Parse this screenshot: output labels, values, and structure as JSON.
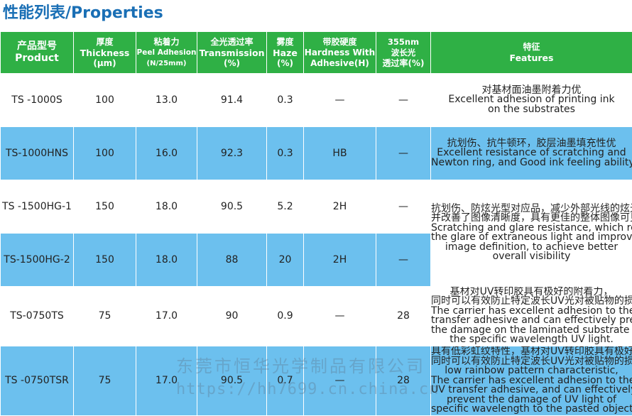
{
  "title": "性能列表/Properties",
  "headers": {
    "product": {
      "zh": "产品型号",
      "en": "Product"
    },
    "thickness": {
      "zh": "厚度",
      "en": "Thickness",
      "unit": "(μm)"
    },
    "peel": {
      "zh": "粘着力",
      "en": "Peel Adhesion",
      "unit": "(N/25mm)"
    },
    "transmission": {
      "zh": "全光透过率",
      "en": "Transmission",
      "unit": "(%)"
    },
    "haze": {
      "zh": "雾度",
      "en": "Haze",
      "unit": "(%)"
    },
    "hardness": {
      "zh": "带胶硬度",
      "en": "Hardness With",
      "unit": "Adhesive(H)"
    },
    "uv": {
      "zh": "355nm",
      "en": "波长光",
      "unit": "透过率(%)"
    },
    "features": {
      "zh": "特征",
      "en": "Features"
    }
  },
  "rows": [
    {
      "product": "TS -1000S",
      "thickness": "100",
      "peel": "13.0",
      "transmission": "91.4",
      "haze": "0.3",
      "hardness": "—",
      "uv": "—"
    },
    {
      "product": "TS-1000HNS",
      "thickness": "100",
      "peel": "16.0",
      "transmission": "92.3",
      "haze": "0.3",
      "hardness": "HB",
      "uv": "—"
    },
    {
      "product": "TS -1500HG-1",
      "thickness": "150",
      "peel": "18.0",
      "transmission": "90.5",
      "haze": "5.2",
      "hardness": "2H",
      "uv": "—"
    },
    {
      "product": "TS-1500HG-2",
      "thickness": "150",
      "peel": "18.0",
      "transmission": "88",
      "haze": "20",
      "hardness": "2H",
      "uv": "—"
    },
    {
      "product": "TS-0750TS",
      "thickness": "75",
      "peel": "17.0",
      "transmission": "90",
      "haze": "0.9",
      "hardness": "—",
      "uv": "28"
    },
    {
      "product": "TS -0750TSR",
      "thickness": "75",
      "peel": "17.0",
      "transmission": "90.5",
      "haze": "0.7",
      "hardness": "—",
      "uv": "28"
    }
  ],
  "features": [
    [
      "对基材面油墨附着力优",
      "Excellent adhesion  of printing ink",
      "on the substrates"
    ],
    [
      "抗划伤、抗牛顿环，胶层油墨填充性优",
      "Excellent resistance of scratching and",
      "Newton ring, and Good ink feeling ability"
    ],
    [
      "抗划伤、防炫光型对应品，减少外部光线的炫光",
      "并改善了图像清晰度，具有更佳的整体图像可见性",
      "Scratching and glare resistance, which reduce",
      "the glare of extraneous light and improve the",
      "image definition, to achieve better",
      "overall visibility"
    ],
    [
      "基材对UV转印胶具有极好的附着力，",
      "同时可以有效防止特定波长UV光对被贴物的损伤",
      "The carrier has excellent adhesion to the UV",
      "transfer adhesive and can effectively prevent",
      "the damage on the laminated substrate from",
      "the specific wavelength UV light."
    ],
    [
      "具有低彩虹纹特性，基材对UV转印胶具有极好的附着力，",
      "同时可以有效防止特定波长UV光对被贴物的损伤",
      "low rainbow pattern characteristic,",
      "The carrier has excellent adhesion to the",
      "UV transfer adhesive, and can effectively",
      "prevent the damage of UV light of",
      "specific wavelength to the pasted object."
    ]
  ],
  "watermark": {
    "company": "东莞市恒华光学制品有限公司",
    "url": "https://hh7699.cn.china.cn"
  },
  "colors": {
    "header_green": "#2fb045",
    "row_blue": "#6cc0ee",
    "title_blue": "#1a6fb5"
  }
}
